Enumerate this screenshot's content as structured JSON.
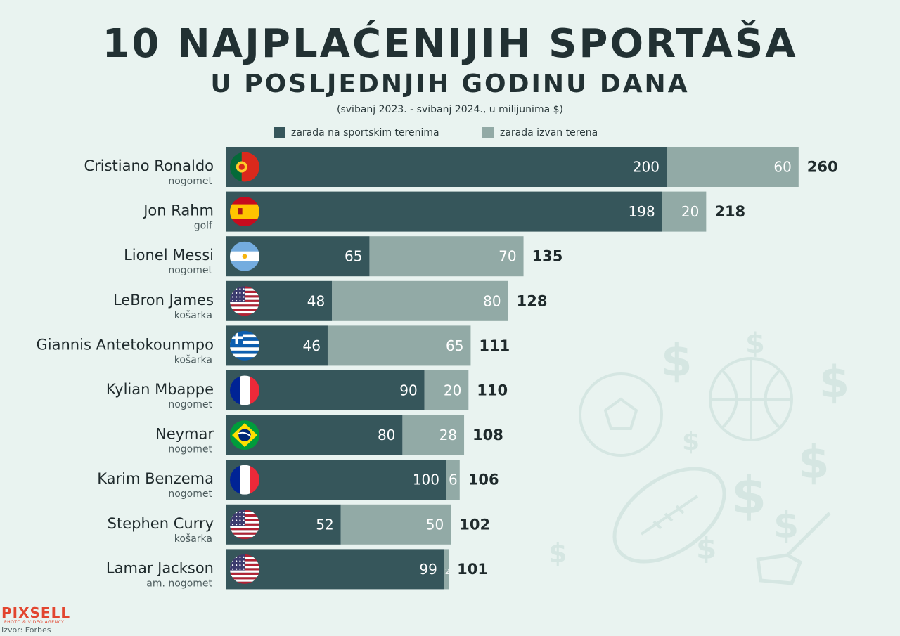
{
  "title": "10 NAJPLAĆENIJIH SPORTAŠA",
  "subtitle": "U POSLJEDNJIH GODINU DANA",
  "note": "(svibanj 2023. - svibanj 2024., u milijunima $)",
  "colors": {
    "on_field": "#36565b",
    "off_field": "#92aaa6",
    "background": "#e9f3f0"
  },
  "chart_data": {
    "type": "bar",
    "orientation": "horizontal",
    "stacked": true,
    "categories": [
      "Cristiano Ronaldo",
      "Jon Rahm",
      "Lionel Messi",
      "LeBron James",
      "Giannis Antetokounmpo",
      "Kylian Mbappe",
      "Neymar",
      "Karim Benzema",
      "Stephen Curry",
      "Lamar Jackson"
    ],
    "sports": [
      "nogomet",
      "golf",
      "nogomet",
      "košarka",
      "košarka",
      "nogomet",
      "nogomet",
      "nogomet",
      "košarka",
      "am. nogomet"
    ],
    "flags": [
      "portugal",
      "spain",
      "argentina",
      "usa",
      "greece",
      "france",
      "brazil",
      "france",
      "usa",
      "usa"
    ],
    "series": [
      {
        "name": "zarada na sportskim terenima",
        "values": [
          200,
          198,
          65,
          48,
          46,
          90,
          80,
          100,
          52,
          99
        ]
      },
      {
        "name": "zarada izvan terena",
        "values": [
          60,
          20,
          70,
          80,
          65,
          20,
          28,
          6,
          50,
          2
        ]
      }
    ],
    "totals": [
      260,
      218,
      135,
      128,
      111,
      110,
      108,
      106,
      102,
      101
    ],
    "legend": "top"
  },
  "logo": {
    "name": "PIXSELL",
    "tagline": "PHOTO & VIDEO AGENCY"
  },
  "source": "Izvor: Forbes"
}
